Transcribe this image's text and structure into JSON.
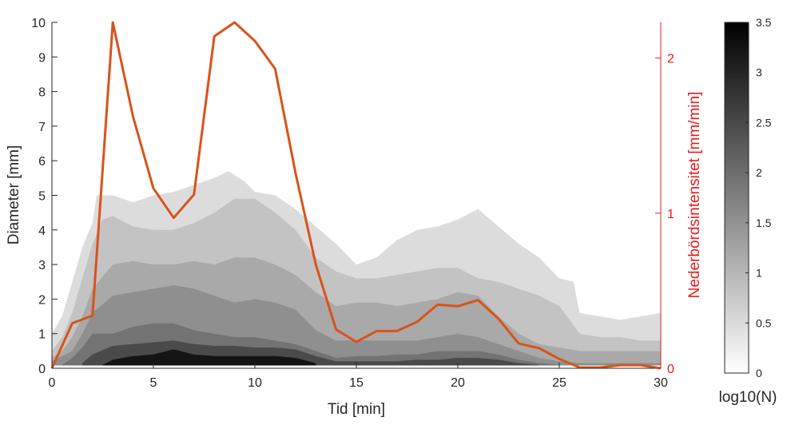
{
  "chart_data": {
    "type": "contour",
    "title": "",
    "xlabel": "Tid [min]",
    "ylabel": "Diameter [mm]",
    "y2label": "Nederbördsintensitet [mm/min]",
    "xlim": [
      0,
      30
    ],
    "ylim": [
      0,
      10
    ],
    "y2lim": [
      0,
      2.23
    ],
    "x_ticks": [
      0,
      5,
      10,
      15,
      20,
      25,
      30
    ],
    "y_ticks": [
      0,
      1,
      2,
      3,
      4,
      5,
      6,
      7,
      8,
      9,
      10
    ],
    "y2_ticks": [
      0,
      1,
      2
    ],
    "colorbar": {
      "label": "log10(N)",
      "range": [
        0,
        3.5
      ],
      "ticks": [
        0,
        0.5,
        1,
        1.5,
        2,
        2.5,
        3,
        3.5
      ],
      "colormap": "gray-reversed"
    },
    "contour_levels": [
      {
        "level": 0.5,
        "color": "#dcdcdc",
        "upper": [
          [
            0,
            1.0
          ],
          [
            0.5,
            1.5
          ],
          [
            1,
            2.5
          ],
          [
            1.5,
            3.5
          ],
          [
            2,
            4.2
          ],
          [
            2.2,
            5.0
          ],
          [
            3,
            5.0
          ],
          [
            4,
            4.8
          ],
          [
            5,
            5.0
          ],
          [
            6,
            5.1
          ],
          [
            7,
            5.3
          ],
          [
            8,
            5.5
          ],
          [
            8.7,
            5.7
          ],
          [
            9.5,
            5.4
          ],
          [
            10,
            5.1
          ],
          [
            11,
            5.0
          ],
          [
            12,
            4.6
          ],
          [
            13,
            4.1
          ],
          [
            14,
            3.6
          ],
          [
            15,
            3.0
          ],
          [
            16,
            3.2
          ],
          [
            17,
            3.7
          ],
          [
            18,
            4.0
          ],
          [
            19,
            4.1
          ],
          [
            20,
            4.3
          ],
          [
            21,
            4.6
          ],
          [
            22,
            4.1
          ],
          [
            23,
            3.6
          ],
          [
            24,
            3.2
          ],
          [
            25,
            2.6
          ],
          [
            25.7,
            2.5
          ],
          [
            26,
            1.6
          ],
          [
            27,
            1.5
          ],
          [
            28,
            1.4
          ],
          [
            29,
            1.5
          ],
          [
            30,
            1.6
          ]
        ],
        "lower": [
          [
            30,
            0.08
          ],
          [
            25,
            0.08
          ],
          [
            20,
            0.08
          ],
          [
            15,
            0.08
          ],
          [
            10,
            0.08
          ],
          [
            5,
            0.08
          ],
          [
            0,
            0.08
          ]
        ]
      },
      {
        "level": 1.0,
        "color": "#c3c3c3",
        "upper": [
          [
            0,
            0.5
          ],
          [
            0.5,
            0.9
          ],
          [
            1,
            1.6
          ],
          [
            1.5,
            2.6
          ],
          [
            2,
            3.6
          ],
          [
            2.5,
            4.3
          ],
          [
            3,
            4.4
          ],
          [
            4,
            4.1
          ],
          [
            5,
            4.0
          ],
          [
            6,
            4.0
          ],
          [
            7,
            4.2
          ],
          [
            8,
            4.5
          ],
          [
            9,
            4.9
          ],
          [
            10,
            4.9
          ],
          [
            11,
            4.5
          ],
          [
            12,
            4.0
          ],
          [
            13,
            3.2
          ],
          [
            14,
            2.8
          ],
          [
            15,
            2.6
          ],
          [
            16,
            2.6
          ],
          [
            17,
            2.7
          ],
          [
            18,
            2.8
          ],
          [
            19,
            2.9
          ],
          [
            20,
            2.9
          ],
          [
            21,
            2.6
          ],
          [
            22,
            2.5
          ],
          [
            23,
            2.3
          ],
          [
            24,
            2.1
          ],
          [
            25,
            1.8
          ],
          [
            26,
            1.0
          ],
          [
            27,
            0.9
          ],
          [
            28,
            0.9
          ],
          [
            29,
            0.8
          ],
          [
            30,
            0.8
          ]
        ],
        "lower": [
          [
            30,
            0.08
          ],
          [
            25,
            0.08
          ],
          [
            20,
            0.08
          ],
          [
            15,
            0.08
          ],
          [
            10,
            0.08
          ],
          [
            5,
            0.08
          ],
          [
            0,
            0.08
          ]
        ]
      },
      {
        "level": 1.5,
        "color": "#a9a9a9",
        "upper": [
          [
            0,
            0.3
          ],
          [
            0.5,
            0.5
          ],
          [
            1,
            0.9
          ],
          [
            1.5,
            1.5
          ],
          [
            2,
            2.3
          ],
          [
            3,
            3.0
          ],
          [
            4,
            3.1
          ],
          [
            5,
            3.0
          ],
          [
            6,
            3.0
          ],
          [
            7,
            3.1
          ],
          [
            8,
            3.0
          ],
          [
            9,
            3.2
          ],
          [
            10,
            3.2
          ],
          [
            11,
            3.0
          ],
          [
            12,
            2.7
          ],
          [
            13,
            2.2
          ],
          [
            14,
            1.8
          ],
          [
            15,
            1.9
          ],
          [
            16,
            1.9
          ],
          [
            17,
            1.8
          ],
          [
            18,
            1.9
          ],
          [
            19,
            2.0
          ],
          [
            20,
            2.2
          ],
          [
            21,
            2.1
          ],
          [
            22,
            1.5
          ],
          [
            23,
            1.0
          ],
          [
            24,
            0.7
          ],
          [
            25,
            0.6
          ],
          [
            26,
            0.5
          ],
          [
            28,
            0.5
          ],
          [
            30,
            0.5
          ]
        ],
        "lower": [
          [
            30,
            0.08
          ],
          [
            25,
            0.08
          ],
          [
            20,
            0.08
          ],
          [
            15,
            0.08
          ],
          [
            10,
            0.08
          ],
          [
            5,
            0.08
          ],
          [
            0,
            0.08
          ]
        ]
      },
      {
        "level": 2.0,
        "color": "#8f8f8f",
        "upper": [
          [
            0,
            0.2
          ],
          [
            1,
            0.5
          ],
          [
            1.5,
            1.0
          ],
          [
            2,
            1.6
          ],
          [
            3,
            2.1
          ],
          [
            4,
            2.2
          ],
          [
            5,
            2.3
          ],
          [
            6,
            2.4
          ],
          [
            7,
            2.3
          ],
          [
            8,
            2.1
          ],
          [
            9,
            1.9
          ],
          [
            10,
            2.0
          ],
          [
            11,
            1.9
          ],
          [
            12,
            1.7
          ],
          [
            13,
            1.1
          ],
          [
            14,
            0.8
          ],
          [
            15,
            0.8
          ],
          [
            16,
            0.8
          ],
          [
            17,
            0.8
          ],
          [
            18,
            0.8
          ],
          [
            19,
            0.9
          ],
          [
            20,
            1.0
          ],
          [
            21,
            0.9
          ],
          [
            22,
            0.7
          ],
          [
            23,
            0.5
          ],
          [
            24,
            0.3
          ],
          [
            25,
            0.2
          ],
          [
            26,
            0.15
          ],
          [
            30,
            0.15
          ]
        ],
        "lower": [
          [
            30,
            0.08
          ],
          [
            25,
            0.08
          ],
          [
            20,
            0.08
          ],
          [
            15,
            0.08
          ],
          [
            10,
            0.08
          ],
          [
            5,
            0.08
          ],
          [
            0,
            0.08
          ]
        ]
      },
      {
        "level": 2.5,
        "color": "#737373",
        "upper": [
          [
            0.5,
            0.1
          ],
          [
            1,
            0.3
          ],
          [
            1.5,
            0.6
          ],
          [
            2,
            1.0
          ],
          [
            3,
            1.0
          ],
          [
            4,
            1.2
          ],
          [
            5,
            1.3
          ],
          [
            6,
            1.3
          ],
          [
            7,
            1.1
          ],
          [
            8,
            1.0
          ],
          [
            9,
            0.9
          ],
          [
            10,
            0.9
          ],
          [
            11,
            0.8
          ],
          [
            12,
            0.7
          ],
          [
            13,
            0.5
          ],
          [
            14,
            0.3
          ],
          [
            15,
            0.35
          ],
          [
            16,
            0.35
          ],
          [
            17,
            0.4
          ],
          [
            18,
            0.4
          ],
          [
            19,
            0.5
          ],
          [
            20,
            0.5
          ],
          [
            21,
            0.5
          ],
          [
            22,
            0.4
          ],
          [
            23,
            0.25
          ],
          [
            24,
            0.15
          ],
          [
            25,
            0.1
          ]
        ],
        "lower": [
          [
            25,
            0.08
          ],
          [
            20,
            0.08
          ],
          [
            15,
            0.08
          ],
          [
            10,
            0.08
          ],
          [
            5,
            0.08
          ],
          [
            0.5,
            0.08
          ]
        ]
      },
      {
        "level": 3.0,
        "color": "#4a4a4a",
        "upper": [
          [
            1.5,
            0.15
          ],
          [
            2,
            0.4
          ],
          [
            3,
            0.65
          ],
          [
            4,
            0.7
          ],
          [
            5,
            0.75
          ],
          [
            6,
            0.8
          ],
          [
            7,
            0.7
          ],
          [
            8,
            0.65
          ],
          [
            9,
            0.65
          ],
          [
            10,
            0.6
          ],
          [
            11,
            0.6
          ],
          [
            12,
            0.55
          ],
          [
            13,
            0.35
          ],
          [
            14,
            0.2
          ],
          [
            15,
            0.2
          ],
          [
            16,
            0.2
          ],
          [
            17,
            0.2
          ],
          [
            18,
            0.25
          ],
          [
            19,
            0.25
          ],
          [
            20,
            0.3
          ],
          [
            21,
            0.3
          ],
          [
            22,
            0.25
          ],
          [
            23,
            0.15
          ],
          [
            24,
            0.1
          ]
        ],
        "lower": [
          [
            24,
            0.08
          ],
          [
            20,
            0.08
          ],
          [
            15,
            0.08
          ],
          [
            10,
            0.08
          ],
          [
            5,
            0.08
          ],
          [
            1.5,
            0.08
          ]
        ]
      },
      {
        "level": 3.5,
        "color": "#141414",
        "upper": [
          [
            2.5,
            0.1
          ],
          [
            3,
            0.25
          ],
          [
            4,
            0.35
          ],
          [
            5,
            0.4
          ],
          [
            6,
            0.55
          ],
          [
            7,
            0.4
          ],
          [
            8,
            0.35
          ],
          [
            9,
            0.35
          ],
          [
            10,
            0.35
          ],
          [
            11,
            0.35
          ],
          [
            12,
            0.3
          ],
          [
            13,
            0.15
          ]
        ],
        "lower": [
          [
            13,
            0.08
          ],
          [
            10,
            0.08
          ],
          [
            5,
            0.08
          ],
          [
            2.5,
            0.08
          ]
        ]
      }
    ],
    "series": [
      {
        "name": "Nederbördsintensitet",
        "axis": "right",
        "color": "#d95319",
        "x": [
          0,
          1,
          2,
          3,
          4,
          5,
          6,
          7,
          8,
          9,
          10,
          11,
          12,
          13,
          14,
          15,
          16,
          17,
          18,
          19,
          20,
          21,
          22,
          23,
          24,
          25,
          26,
          27,
          28,
          29,
          30
        ],
        "y": [
          0,
          0.29,
          0.34,
          2.23,
          1.62,
          1.16,
          0.97,
          1.12,
          2.14,
          2.23,
          2.11,
          1.93,
          1.26,
          0.67,
          0.25,
          0.17,
          0.24,
          0.24,
          0.3,
          0.41,
          0.4,
          0.44,
          0.32,
          0.16,
          0.13,
          0.06,
          0.005,
          0.005,
          0.02,
          0.02,
          0
        ]
      }
    ]
  }
}
